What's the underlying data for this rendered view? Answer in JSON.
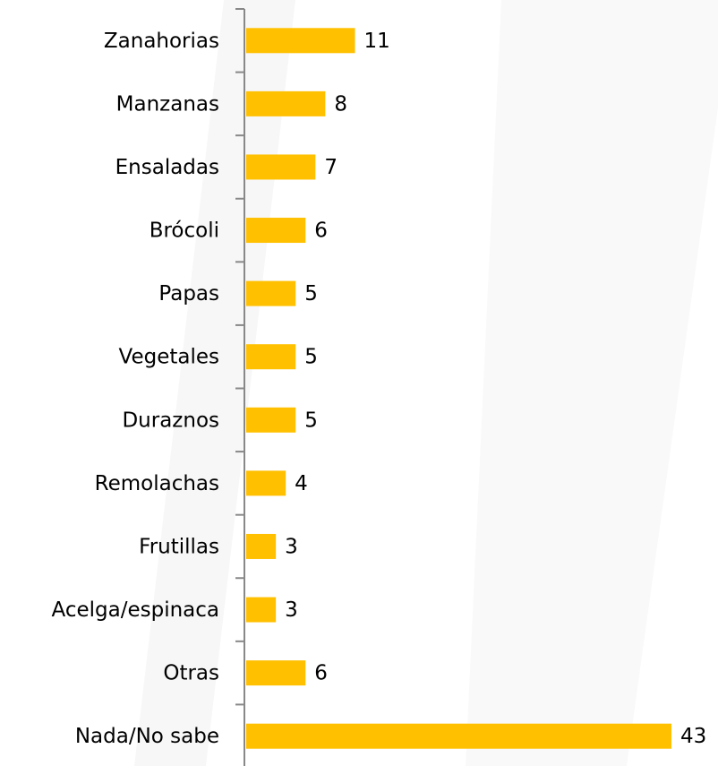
{
  "chart_data": {
    "type": "bar",
    "orientation": "horizontal",
    "categories": [
      "Zanahorias",
      "Manzanas",
      "Ensaladas",
      "Brócoli",
      "Papas",
      "Vegetales",
      "Duraznos",
      "Remolachas",
      "Frutillas",
      "Acelga/espinaca",
      "Otras",
      "Nada/No sabe"
    ],
    "values": [
      11,
      8,
      7,
      6,
      5,
      5,
      5,
      4,
      3,
      3,
      6,
      43
    ],
    "color": "#ffc000"
  }
}
